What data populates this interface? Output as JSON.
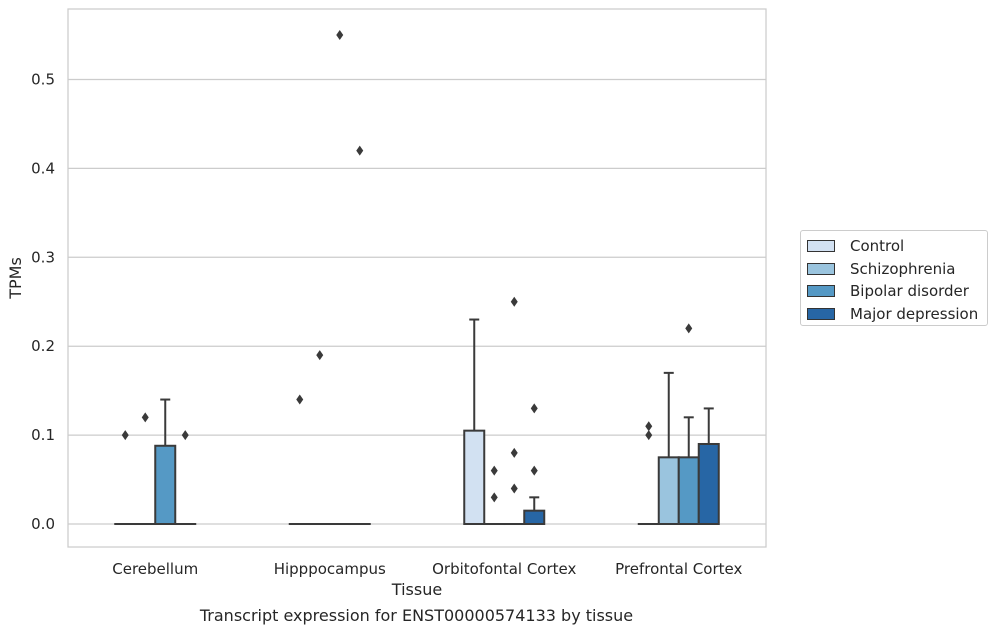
{
  "chart_data": {
    "type": "box",
    "title": "",
    "caption": "Transcript expression for ENST00000574133 by tissue",
    "xlabel": "Tissue",
    "ylabel": "TPMs",
    "ylim": [
      -0.027,
      0.58
    ],
    "yticks": [
      0.0,
      0.1,
      0.2,
      0.3,
      0.4,
      0.5
    ],
    "ytick_labels": [
      "0.0",
      "0.1",
      "0.2",
      "0.3",
      "0.4",
      "0.5"
    ],
    "grid": "horizontal",
    "legend_position": "right",
    "categories": [
      "Cerebellum",
      "Hipppocampus",
      "Orbitofontal Cortex",
      "Prefrontal Cortex"
    ],
    "series": [
      {
        "name": "Control",
        "color": "#d2e1f2",
        "boxes": [
          {
            "q1": 0.0,
            "median": 0.0,
            "q3": 0.0,
            "whislo": 0.0,
            "whishi": 0.0,
            "fliers": [
              0.1
            ]
          },
          {
            "q1": 0.0,
            "median": 0.0,
            "q3": 0.0,
            "whislo": 0.0,
            "whishi": 0.0,
            "fliers": [
              0.14
            ]
          },
          {
            "q1": 0.0,
            "median": 0.0,
            "q3": 0.105,
            "whislo": 0.0,
            "whishi": 0.23,
            "fliers": []
          },
          {
            "q1": 0.0,
            "median": 0.0,
            "q3": 0.0,
            "whislo": 0.0,
            "whishi": 0.0,
            "fliers": [
              0.1,
              0.11
            ]
          }
        ]
      },
      {
        "name": "Schizophrenia",
        "color": "#9ac4de",
        "boxes": [
          {
            "q1": 0.0,
            "median": 0.0,
            "q3": 0.0,
            "whislo": 0.0,
            "whishi": 0.0,
            "fliers": [
              0.12
            ]
          },
          {
            "q1": 0.0,
            "median": 0.0,
            "q3": 0.0,
            "whislo": 0.0,
            "whishi": 0.0,
            "fliers": [
              0.19
            ]
          },
          {
            "q1": 0.0,
            "median": 0.0,
            "q3": 0.0,
            "whislo": 0.0,
            "whishi": 0.0,
            "fliers": [
              0.03,
              0.06
            ]
          },
          {
            "q1": 0.0,
            "median": 0.0,
            "q3": 0.075,
            "whislo": 0.0,
            "whishi": 0.17,
            "fliers": []
          }
        ]
      },
      {
        "name": "Bipolar disorder",
        "color": "#5599c5",
        "boxes": [
          {
            "q1": 0.0,
            "median": 0.0,
            "q3": 0.088,
            "whislo": 0.0,
            "whishi": 0.14,
            "fliers": []
          },
          {
            "q1": 0.0,
            "median": 0.0,
            "q3": 0.0,
            "whislo": 0.0,
            "whishi": 0.0,
            "fliers": [
              0.55
            ]
          },
          {
            "q1": 0.0,
            "median": 0.0,
            "q3": 0.0,
            "whislo": 0.0,
            "whishi": 0.0,
            "fliers": [
              0.04,
              0.08,
              0.25
            ]
          },
          {
            "q1": 0.0,
            "median": 0.0,
            "q3": 0.075,
            "whislo": 0.0,
            "whishi": 0.12,
            "fliers": [
              0.22
            ]
          }
        ]
      },
      {
        "name": "Major depression",
        "color": "#2766a5",
        "boxes": [
          {
            "q1": 0.0,
            "median": 0.0,
            "q3": 0.0,
            "whislo": 0.0,
            "whishi": 0.0,
            "fliers": [
              0.1
            ]
          },
          {
            "q1": 0.0,
            "median": 0.0,
            "q3": 0.0,
            "whislo": 0.0,
            "whishi": 0.0,
            "fliers": [
              0.42
            ]
          },
          {
            "q1": 0.0,
            "median": 0.0,
            "q3": 0.015,
            "whislo": 0.0,
            "whishi": 0.03,
            "fliers": [
              0.06,
              0.13
            ]
          },
          {
            "q1": 0.0,
            "median": 0.0,
            "q3": 0.09,
            "whislo": 0.0,
            "whishi": 0.13,
            "fliers": []
          }
        ]
      }
    ]
  }
}
